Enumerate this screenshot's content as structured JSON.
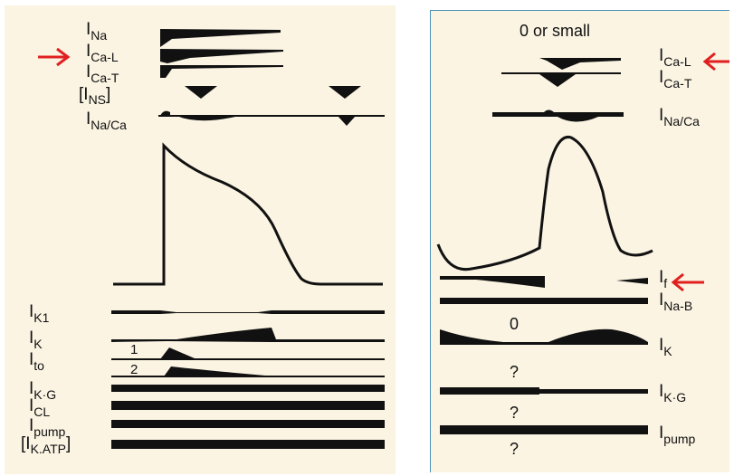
{
  "left": {
    "labels": {
      "na": "Na",
      "cal": "Ca-L",
      "cat": "Ca-T",
      "ns": "NS",
      "naca": "Na/Ca",
      "k1": "K1",
      "k": "K",
      "to": "to",
      "to_1": "1",
      "to_2": "2",
      "kg": "K·G",
      "cl": "CL",
      "pump": "pump",
      "katp": "K.ATP"
    }
  },
  "right": {
    "header": "0 or small",
    "labels": {
      "cal": "Ca-L",
      "cat": "Ca-T",
      "naca": "Na/Ca",
      "f": "f",
      "nab": "Na-B",
      "k": "K",
      "kg": "K·G",
      "pump": "pump"
    },
    "notes": {
      "ik_zero": "0",
      "kg_unknown": "?",
      "pump_unknown": "?",
      "bottom_unknown": "?"
    }
  },
  "colors": {
    "arrow": "#e02020",
    "ink": "#111111",
    "background": "#fbf4e3",
    "border": "#4a90b8"
  },
  "prefix": "I"
}
